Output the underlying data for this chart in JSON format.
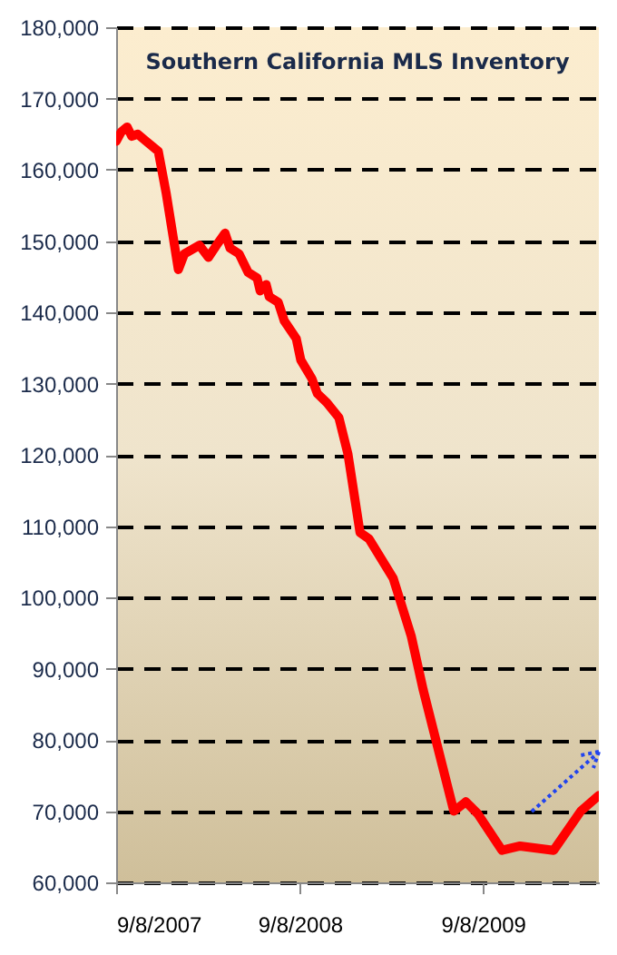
{
  "chart_data": {
    "type": "line",
    "title": "Southern California  MLS Inventory",
    "x": [
      "2007-09-08",
      "2007-09-18",
      "2007-09-30",
      "2007-10-09",
      "2007-10-21",
      "2007-11-05",
      "2007-12-01",
      "2007-12-17",
      "2008-01-10",
      "2008-01-22",
      "2008-02-21",
      "2008-03-10",
      "2008-03-26",
      "2008-04-12",
      "2008-04-22",
      "2008-05-10",
      "2008-05-28",
      "2008-06-15",
      "2008-06-21",
      "2008-07-03",
      "2008-07-09",
      "2008-07-27",
      "2008-08-08",
      "2008-09-01",
      "2008-09-10",
      "2008-10-02",
      "2008-10-13",
      "2008-11-01",
      "2008-11-25",
      "2008-12-13",
      "2009-01-06",
      "2009-01-24",
      "2009-03-13",
      "2009-04-18",
      "2009-05-12",
      "2009-07-12",
      "2009-08-05",
      "2009-08-29",
      "2009-10-16",
      "2009-11-21",
      "2010-01-27",
      "2010-03-22",
      "2010-04-27"
    ],
    "series": [
      {
        "color": "#ff0000",
        "values": [
          164000,
          165300,
          166000,
          164700,
          165000,
          164100,
          162600,
          156600,
          146000,
          148200,
          149400,
          147700,
          149400,
          151100,
          149000,
          148200,
          145600,
          144800,
          143000,
          143900,
          142200,
          141400,
          138800,
          136300,
          133300,
          130700,
          128600,
          127300,
          125200,
          120100,
          109100,
          108200,
          102700,
          94600,
          87000,
          70000,
          71300,
          69600,
          64500,
          65100,
          64500,
          70000,
          72200
        ]
      }
    ],
    "xlim": [
      "2007-09-08",
      "2010-04-27"
    ],
    "xticks": [
      {
        "value": "2007-09-08",
        "label": "9/8/2007"
      },
      {
        "value": "2008-09-08",
        "label": "9/8/2008"
      },
      {
        "value": "2009-09-08",
        "label": "9/8/2009"
      }
    ],
    "ylim": [
      60000,
      180000
    ],
    "yticks": [
      {
        "value": 60000,
        "label": "60,000"
      },
      {
        "value": 70000,
        "label": "70,000"
      },
      {
        "value": 80000,
        "label": "80,000"
      },
      {
        "value": 90000,
        "label": "90,000"
      },
      {
        "value": 100000,
        "label": "100,000"
      },
      {
        "value": 110000,
        "label": "110,000"
      },
      {
        "value": 120000,
        "label": "120,000"
      },
      {
        "value": 130000,
        "label": "130,000"
      },
      {
        "value": 140000,
        "label": "140,000"
      },
      {
        "value": 150000,
        "label": "150,000"
      },
      {
        "value": 160000,
        "label": "160,000"
      },
      {
        "value": 170000,
        "label": "170,000"
      },
      {
        "value": 180000,
        "label": "180,000"
      }
    ],
    "grid": "y",
    "marker": "none",
    "line_style": "solid"
  }
}
